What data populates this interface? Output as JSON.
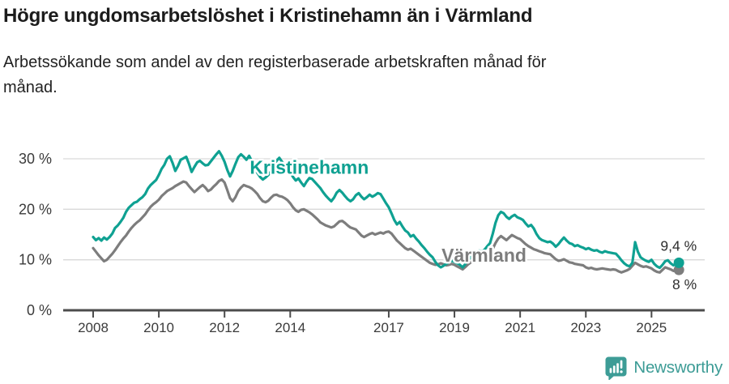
{
  "header": {
    "title": "Högre ungdomsarbetslöshet i Kristinehamn än i Värmland",
    "subtitle": "Arbetssökande som andel av den registerbaserade arbetskraften månad för månad."
  },
  "chart_data": {
    "type": "line",
    "x_start": "2008-01",
    "x_interval": "monthly",
    "x_tick_years": [
      2008,
      2010,
      2012,
      2014,
      2017,
      2019,
      2021,
      2023,
      2025
    ],
    "y_ticks": [
      {
        "value": 0,
        "label": "0 %"
      },
      {
        "value": 10,
        "label": "10 %"
      },
      {
        "value": 20,
        "label": "20 %"
      },
      {
        "value": 30,
        "label": "30 %"
      }
    ],
    "ylim": [
      0,
      33
    ],
    "grid": true,
    "legend_position": "inline-labels",
    "colors": {
      "kristinehamn": "#0fa192",
      "varmland": "#7d7d7d",
      "grid": "#d9d9d9",
      "axis": "#4c4c4c",
      "tick_text": "#3b3b3b",
      "annotation_text": "#2e2e2e"
    },
    "series": [
      {
        "name": "Värmland",
        "color": "#7d7d7d",
        "end_label": "8 %",
        "label_anchor": {
          "year": 2019.9,
          "value": 9.6
        },
        "values": [
          12.3,
          11.6,
          10.9,
          10.3,
          9.7,
          10.0,
          10.6,
          11.2,
          11.9,
          12.7,
          13.5,
          14.2,
          14.8,
          15.6,
          16.3,
          16.9,
          17.4,
          17.8,
          18.4,
          19.0,
          19.8,
          20.5,
          21.0,
          21.4,
          21.9,
          22.6,
          23.1,
          23.6,
          23.9,
          24.2,
          24.6,
          24.9,
          25.2,
          25.5,
          25.3,
          24.6,
          24.0,
          23.4,
          23.9,
          24.4,
          24.8,
          24.3,
          23.6,
          23.9,
          24.5,
          25.0,
          25.6,
          25.9,
          25.3,
          23.8,
          22.2,
          21.6,
          22.4,
          23.6,
          24.3,
          24.8,
          24.6,
          24.4,
          24.1,
          23.6,
          23.0,
          22.2,
          21.6,
          21.4,
          21.7,
          22.3,
          22.8,
          22.9,
          22.6,
          22.5,
          22.2,
          21.8,
          21.2,
          20.4,
          19.8,
          19.5,
          19.9,
          20.0,
          19.7,
          19.4,
          19.0,
          18.5,
          18.0,
          17.4,
          17.1,
          16.8,
          16.6,
          16.4,
          16.6,
          17.1,
          17.6,
          17.7,
          17.3,
          16.8,
          16.4,
          16.2,
          16.0,
          15.4,
          14.8,
          14.5,
          14.8,
          15.1,
          15.3,
          15.0,
          15.2,
          15.4,
          15.2,
          15.5,
          15.6,
          15.2,
          14.5,
          13.8,
          13.3,
          12.8,
          12.3,
          12.0,
          12.2,
          11.8,
          11.4,
          11.0,
          10.6,
          10.2,
          9.8,
          9.4,
          9.2,
          9.0,
          9.1,
          9.3,
          9.1,
          8.9,
          9.0,
          9.2,
          9.0,
          8.7,
          8.4,
          8.1,
          8.6,
          9.1,
          9.5,
          9.8,
          10.0,
          10.2,
          10.1,
          10.4,
          10.8,
          11.2,
          12.2,
          13.3,
          14.2,
          14.7,
          14.3,
          13.9,
          14.4,
          14.9,
          14.6,
          14.3,
          14.1,
          13.6,
          13.1,
          12.7,
          12.4,
          12.1,
          11.9,
          11.7,
          11.5,
          11.3,
          11.2,
          11.1,
          10.6,
          10.1,
          9.8,
          9.9,
          10.1,
          9.8,
          9.5,
          9.4,
          9.2,
          9.1,
          9.0,
          8.9,
          8.5,
          8.3,
          8.4,
          8.2,
          8.1,
          8.2,
          8.3,
          8.2,
          8.1,
          8.0,
          8.1,
          8.0,
          7.7,
          7.5,
          7.7,
          7.9,
          8.2,
          8.8,
          9.4,
          9.1,
          8.8,
          8.6,
          8.7,
          8.5,
          8.3,
          7.9,
          7.6,
          7.5,
          8.0,
          8.5,
          8.3,
          8.1,
          7.8,
          7.9,
          8.0
        ]
      },
      {
        "name": "Kristinehamn",
        "color": "#0fa192",
        "end_label": "9,4 %",
        "label_anchor": {
          "year": 2014.58,
          "value": 27.0
        },
        "values": [
          14.5,
          13.9,
          14.3,
          13.8,
          14.4,
          14.0,
          14.5,
          15.2,
          16.3,
          16.8,
          17.5,
          18.3,
          19.5,
          20.3,
          20.8,
          21.3,
          21.5,
          22.0,
          22.4,
          23.0,
          24.1,
          24.8,
          25.3,
          25.8,
          26.8,
          28.0,
          28.8,
          30.0,
          30.5,
          29.2,
          27.6,
          28.6,
          29.8,
          30.1,
          30.4,
          29.0,
          27.4,
          28.4,
          29.3,
          29.6,
          29.1,
          28.7,
          28.8,
          29.5,
          30.2,
          30.9,
          31.5,
          30.6,
          29.4,
          27.8,
          26.5,
          27.6,
          29.0,
          30.3,
          30.9,
          30.4,
          29.8,
          30.6,
          29.5,
          28.3,
          27.2,
          26.4,
          25.9,
          26.3,
          26.8,
          27.5,
          28.6,
          29.6,
          30.2,
          29.4,
          28.5,
          28.0,
          27.4,
          26.4,
          25.7,
          26.1,
          25.3,
          24.6,
          25.5,
          26.2,
          26.0,
          25.4,
          24.8,
          24.2,
          23.4,
          22.7,
          22.1,
          21.6,
          22.3,
          23.3,
          23.8,
          23.3,
          22.6,
          22.0,
          21.6,
          22.0,
          22.8,
          23.2,
          22.5,
          22.0,
          22.4,
          22.9,
          22.5,
          22.8,
          23.2,
          23.0,
          22.1,
          21.2,
          20.4,
          19.2,
          17.9,
          17.0,
          17.5,
          16.6,
          15.8,
          15.4,
          14.6,
          14.9,
          14.2,
          13.6,
          12.9,
          12.3,
          11.6,
          11.0,
          10.5,
          9.6,
          8.9,
          8.5,
          8.8,
          9.2,
          9.5,
          9.8,
          9.6,
          9.3,
          9.0,
          8.5,
          9.2,
          9.9,
          10.5,
          11.0,
          11.4,
          11.8,
          11.6,
          12.0,
          12.7,
          13.3,
          15.2,
          17.3,
          18.8,
          19.5,
          19.2,
          18.5,
          18.1,
          18.6,
          18.9,
          18.4,
          18.2,
          17.9,
          17.2,
          16.6,
          16.9,
          16.2,
          15.1,
          14.3,
          13.9,
          13.7,
          13.5,
          13.6,
          13.2,
          12.6,
          13.1,
          13.8,
          14.4,
          13.8,
          13.3,
          13.1,
          12.7,
          12.9,
          12.6,
          12.4,
          12.1,
          12.3,
          12.0,
          11.8,
          11.9,
          11.6,
          11.4,
          11.7,
          11.5,
          11.4,
          11.3,
          11.2,
          10.6,
          9.9,
          9.3,
          8.9,
          8.7,
          9.4,
          13.5,
          11.6,
          10.5,
          10.1,
          9.8,
          9.6,
          10.0,
          9.2,
          8.7,
          8.4,
          9.0,
          9.7,
          9.9,
          9.3,
          8.9,
          9.2,
          9.4
        ]
      }
    ]
  },
  "footer": {
    "brand": "Newsworthy",
    "brand_color": "#3d9c96",
    "logo_icon": "newsworthy-chart-bubble-icon"
  }
}
